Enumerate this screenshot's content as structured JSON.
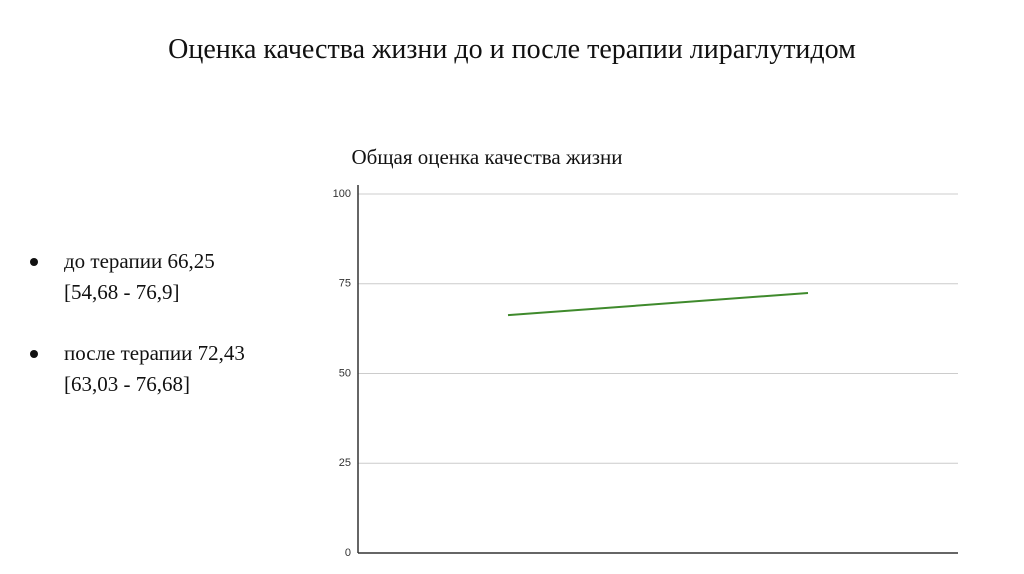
{
  "title": "Оценка качества жизни до и после терапии лираглутидом",
  "bullets": [
    [
      "до терапии 66,25",
      "[54,68 - 76,9]"
    ],
    [
      "после терапии 72,43",
      "[63,03 - 76,68]"
    ]
  ],
  "chart_data": {
    "type": "line",
    "title": "Общая оценка качества жизни",
    "categories": [
      null,
      null
    ],
    "series": [
      {
        "color": "#3f8a2c",
        "values": [
          66.25,
          72.43
        ]
      }
    ],
    "ylim": [
      0,
      100
    ],
    "yticks": [
      0,
      25,
      50,
      75,
      100
    ],
    "grid": true
  }
}
